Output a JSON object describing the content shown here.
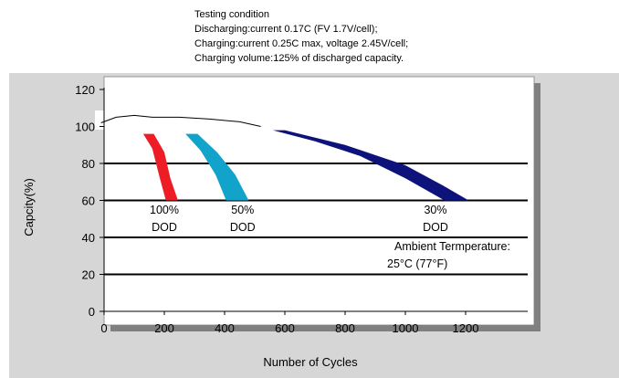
{
  "testing_condition": {
    "title": "Testing condition",
    "lines": [
      "Discharging:current 0.17C (FV 1.7V/cell);",
      "Charging:current 0.25C max, voltage 2.45V/cell;",
      "Charging volume:125% of discharged capacity."
    ]
  },
  "ambient": {
    "line1": "Ambient Termperature:",
    "line2": "25°C (77°F)"
  },
  "chart_data": {
    "type": "area",
    "xlabel": "Number of Cycles",
    "ylabel": "Capcity(%)",
    "xlim": [
      0,
      1300
    ],
    "ylim": [
      0,
      120
    ],
    "xticks": [
      0,
      200,
      400,
      600,
      800,
      1000,
      1200
    ],
    "yticks": [
      0,
      20,
      40,
      60,
      80,
      100,
      120
    ],
    "grid_y": [
      20,
      40,
      60,
      80,
      100
    ],
    "series": [
      {
        "label_top": "100%",
        "label_bottom": "DOD",
        "label_x": 200,
        "color": "#ee1c25",
        "left_edge": [
          [
            130,
            96
          ],
          [
            160,
            88
          ],
          [
            185,
            72
          ],
          [
            205,
            60
          ]
        ],
        "right_edge": [
          [
            165,
            96
          ],
          [
            200,
            86
          ],
          [
            220,
            72
          ],
          [
            245,
            60
          ]
        ]
      },
      {
        "label_top": "50%",
        "label_bottom": "DOD",
        "label_x": 460,
        "color": "#11a3c9",
        "left_edge": [
          [
            270,
            96
          ],
          [
            320,
            87
          ],
          [
            370,
            74
          ],
          [
            405,
            60
          ]
        ],
        "right_edge": [
          [
            310,
            96
          ],
          [
            375,
            86
          ],
          [
            435,
            74
          ],
          [
            480,
            60
          ]
        ]
      },
      {
        "label_top": "30%",
        "label_bottom": "DOD",
        "label_x": 1100,
        "color": "#0d137b",
        "left_edge": [
          [
            560,
            98
          ],
          [
            700,
            92
          ],
          [
            850,
            84
          ],
          [
            1000,
            72
          ],
          [
            1130,
            60
          ]
        ],
        "right_edge": [
          [
            600,
            98
          ],
          [
            800,
            90
          ],
          [
            1000,
            79
          ],
          [
            1125,
            68
          ],
          [
            1210,
            60
          ]
        ]
      }
    ],
    "initial_curve": [
      [
        -10,
        102
      ],
      [
        40,
        105
      ],
      [
        100,
        106
      ],
      [
        160,
        105
      ],
      [
        250,
        105
      ],
      [
        350,
        104
      ],
      [
        450,
        102.5
      ],
      [
        520,
        100
      ]
    ]
  }
}
